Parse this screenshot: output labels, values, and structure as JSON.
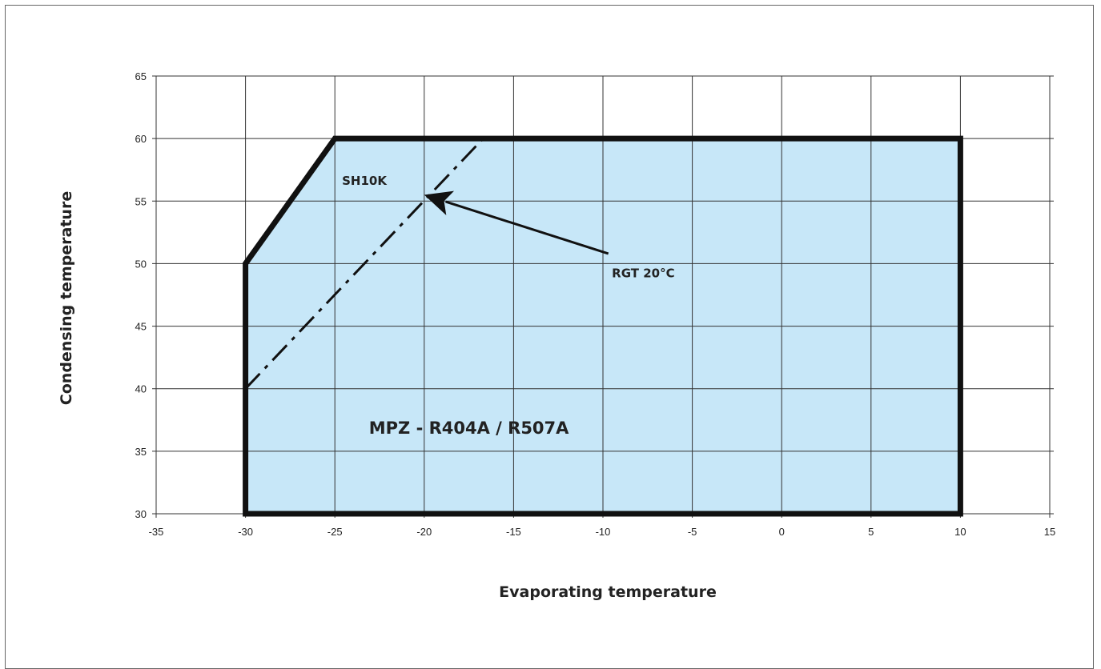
{
  "chart_data": {
    "type": "area",
    "xlabel": "Evaporating temperature",
    "ylabel": "Condensing temperature",
    "xlim": [
      -35,
      15
    ],
    "ylim": [
      30,
      65
    ],
    "x_ticks": [
      -35,
      -30,
      -25,
      -20,
      -15,
      -10,
      -5,
      0,
      5,
      10,
      15
    ],
    "y_ticks": [
      30,
      35,
      40,
      45,
      50,
      55,
      60,
      65
    ],
    "grid": true,
    "fill_color": "#c7e7f8",
    "envelope": {
      "label": "MPZ - R404A / R507A",
      "points": [
        [
          -30,
          30
        ],
        [
          -30,
          50
        ],
        [
          -25,
          60
        ],
        [
          10,
          60
        ],
        [
          10,
          30
        ]
      ]
    },
    "dashed_line": {
      "label": "SH10K",
      "points": [
        [
          -30,
          40
        ],
        [
          -16.7,
          60
        ]
      ]
    },
    "arrow": {
      "label": "RGT 20°C",
      "from": [
        -9.7,
        50.8
      ],
      "to": [
        -20,
        55.5
      ]
    }
  }
}
